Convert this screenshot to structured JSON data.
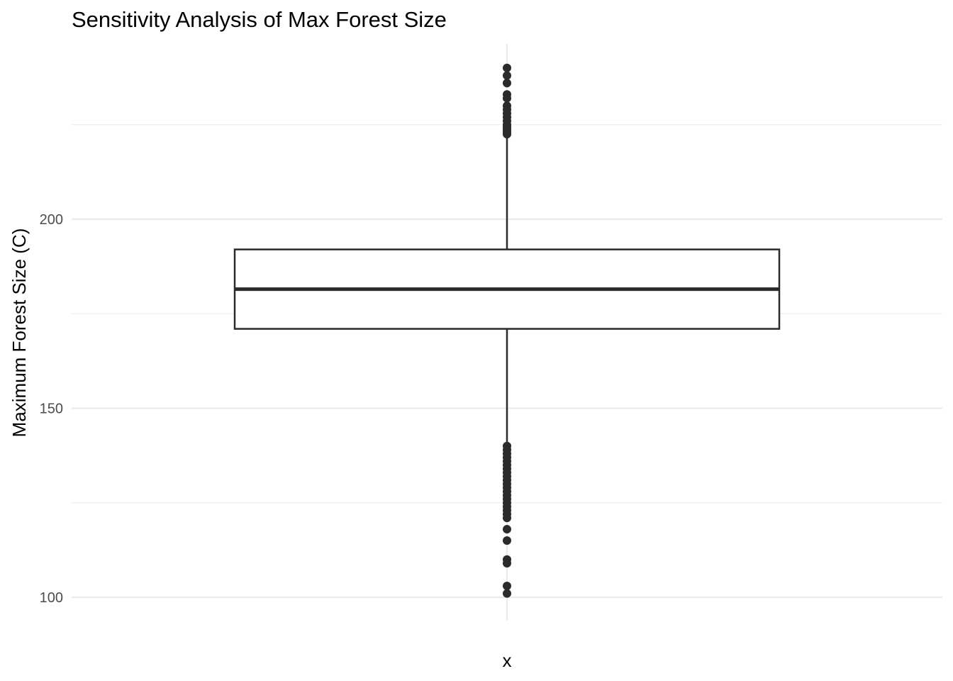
{
  "chart_data": {
    "type": "boxplot",
    "title": "Sensitivity Analysis of Max Forest Size",
    "xlabel": "",
    "ylabel": "Maximum Forest Size (C)",
    "categories": [
      "x"
    ],
    "ylim": [
      94,
      247
    ],
    "y_ticks": [
      100,
      150,
      200
    ],
    "y_minor_ticks": [
      125,
      175,
      225
    ],
    "grid": true,
    "legend": "none",
    "boxes": [
      {
        "category": "x",
        "q1": 171,
        "median": 181.5,
        "q3": 192,
        "whisker_low": 140,
        "whisker_high": 222,
        "outliers": [
          240,
          238,
          236,
          233,
          232,
          230,
          229,
          228,
          227,
          226,
          225,
          224.5,
          224,
          223.5,
          223,
          222.5,
          140,
          139,
          138,
          137,
          136,
          135,
          134,
          133,
          132,
          131,
          130,
          129,
          128,
          127,
          126,
          125,
          124,
          123,
          122,
          121,
          118,
          115,
          110,
          109,
          103,
          101
        ]
      }
    ],
    "colors": {
      "box_line": "#2b2b2b",
      "grid": "#ebebeb",
      "tick_text": "#4d4d4d"
    }
  }
}
